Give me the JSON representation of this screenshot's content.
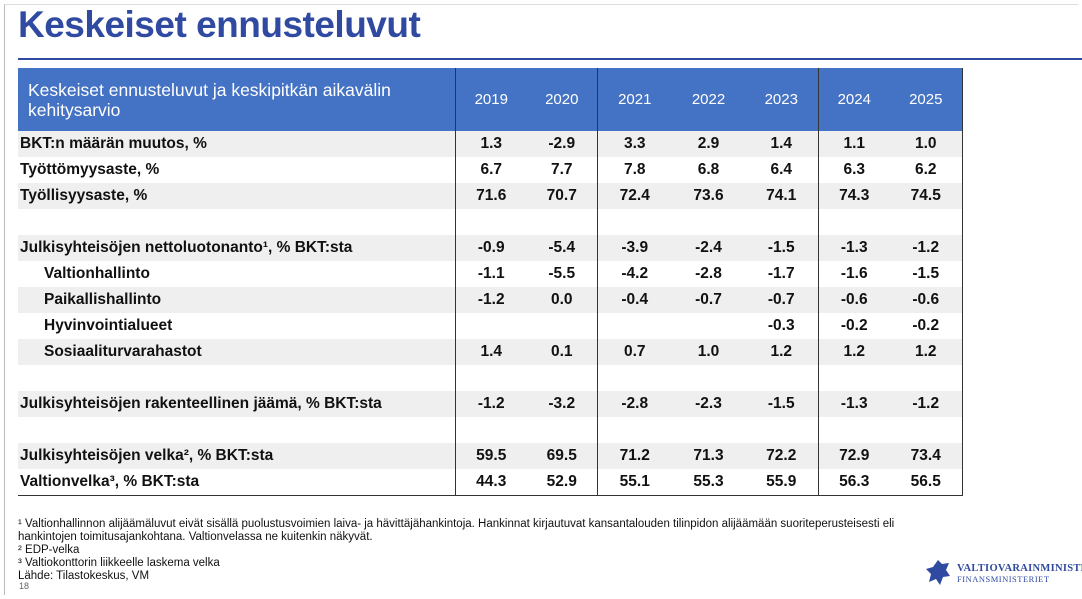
{
  "header": {
    "title": "Keskeiset ennusteluvut"
  },
  "table": {
    "caption": "Keskeiset ennusteluvut ja keskipitkän aikavälin kehitysarvio",
    "years": [
      "2019",
      "2020",
      "2021",
      "2022",
      "2023",
      "2024",
      "2025"
    ],
    "sections": [
      [
        {
          "label": "BKT:n määrän muutos, %",
          "values": [
            "1.3",
            "-2.9",
            "3.3",
            "2.9",
            "1.4",
            "1.1",
            "1.0"
          ]
        },
        {
          "label": "Työttömyysaste, %",
          "values": [
            "6.7",
            "7.7",
            "7.8",
            "6.8",
            "6.4",
            "6.3",
            "6.2"
          ]
        },
        {
          "label": "Työllisyysaste, %",
          "values": [
            "71.6",
            "70.7",
            "72.4",
            "73.6",
            "74.1",
            "74.3",
            "74.5"
          ]
        }
      ],
      [
        {
          "label": "Julkisyhteisöjen nettoluotonanto¹, % BKT:sta",
          "values": [
            "-0.9",
            "-5.4",
            "-3.9",
            "-2.4",
            "-1.5",
            "-1.3",
            "-1.2"
          ]
        },
        {
          "label": "Valtionhallinto",
          "indent": true,
          "values": [
            "-1.1",
            "-5.5",
            "-4.2",
            "-2.8",
            "-1.7",
            "-1.6",
            "-1.5"
          ]
        },
        {
          "label": "Paikallishallinto",
          "indent": true,
          "values": [
            "-1.2",
            "0.0",
            "-0.4",
            "-0.7",
            "-0.7",
            "-0.6",
            "-0.6"
          ]
        },
        {
          "label": "Hyvinvointialueet",
          "indent": true,
          "values": [
            null,
            null,
            null,
            null,
            "-0.3",
            "-0.2",
            "-0.2"
          ]
        },
        {
          "label": "Sosiaaliturvarahastot",
          "indent": true,
          "values": [
            "1.4",
            "0.1",
            "0.7",
            "1.0",
            "1.2",
            "1.2",
            "1.2"
          ]
        }
      ],
      [
        {
          "label": "Julkisyhteisöjen rakenteellinen jäämä, % BKT:sta",
          "values": [
            "-1.2",
            "-3.2",
            "-2.8",
            "-2.3",
            "-1.5",
            "-1.3",
            "-1.2"
          ]
        }
      ],
      [
        {
          "label": "Julkisyhteisöjen velka², % BKT:sta",
          "values": [
            "59.5",
            "69.5",
            "71.2",
            "71.3",
            "72.2",
            "72.9",
            "73.4"
          ]
        },
        {
          "label": "Valtionvelka³, % BKT:sta",
          "values": [
            "44.3",
            "52.9",
            "55.1",
            "55.3",
            "55.9",
            "56.3",
            "56.5"
          ]
        }
      ]
    ]
  },
  "footnotes": [
    "¹ Valtionhallinnon alijäämäluvut eivät sisällä puolustusvoimien laiva- ja hävittäjähankintoja. Hankinnat kirjautuvat kansantalouden tilinpidon alijäämään suoriteperusteisesti eli hankintojen toimitusajankohtana. Valtionvelassa ne kuitenkin näkyvät.",
    "² EDP-velka",
    "³ Valtiokonttorin liikkeelle laskema velka",
    "Lähde: Tilastokeskus, VM"
  ],
  "logo": {
    "line1": "VALTIOVARAINMINISTERIÖ",
    "line2": "FINANSMINISTERIET"
  },
  "page_number": "18"
}
